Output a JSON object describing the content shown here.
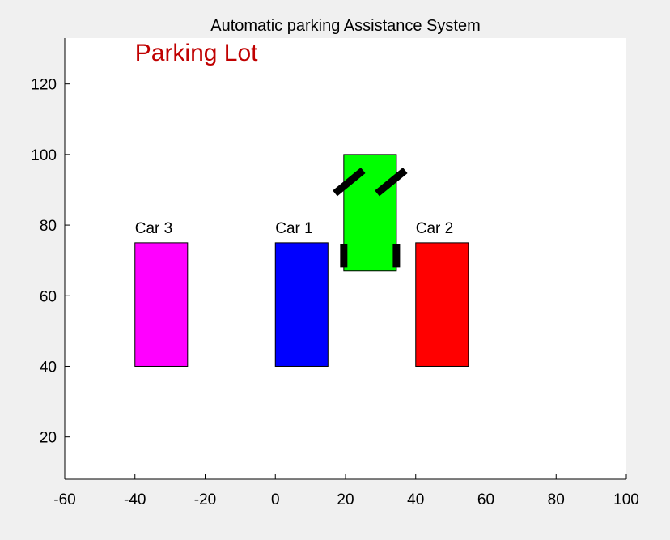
{
  "figure": {
    "background": "#f0f0f0",
    "axes_background": "#ffffff"
  },
  "chart_data": {
    "type": "scatter",
    "title": "Automatic parking Assistance System",
    "xlabel": "",
    "ylabel": "",
    "xlim": [
      -60,
      100
    ],
    "ylim": [
      8,
      133
    ],
    "xticks": [
      -60,
      -40,
      -20,
      0,
      20,
      40,
      60,
      80,
      100
    ],
    "yticks": [
      20,
      40,
      60,
      80,
      100,
      120
    ],
    "grid": false,
    "annotation": {
      "text": "Parking Lot",
      "x": -40,
      "y": 128,
      "color": "#c00000"
    },
    "parked_cars": [
      {
        "label": "Car 3",
        "x": [
          -40,
          -25
        ],
        "y": [
          40,
          75
        ],
        "color": "#ff00ff"
      },
      {
        "label": "Car 1",
        "x": [
          0,
          15
        ],
        "y": [
          40,
          75
        ],
        "color": "#0000ff"
      },
      {
        "label": "Car 2",
        "x": [
          40,
          55
        ],
        "y": [
          40,
          75
        ],
        "color": "#ff0000"
      }
    ],
    "ego_car": {
      "x": [
        19.5,
        34.5
      ],
      "y": [
        67,
        100
      ],
      "color": "#00ff00",
      "wheels": [
        {
          "name": "front-left-wheel",
          "x": [
            17,
            25
          ],
          "y": [
            89,
            95.5
          ]
        },
        {
          "name": "front-right-wheel",
          "x": [
            29,
            37
          ],
          "y": [
            89,
            95.5
          ]
        },
        {
          "name": "rear-left-wheel",
          "x": [
            19.5,
            19.5
          ],
          "y": [
            68,
            74.5
          ]
        },
        {
          "name": "rear-right-wheel",
          "x": [
            34.5,
            34.5
          ],
          "y": [
            68,
            74.5
          ]
        }
      ]
    }
  }
}
